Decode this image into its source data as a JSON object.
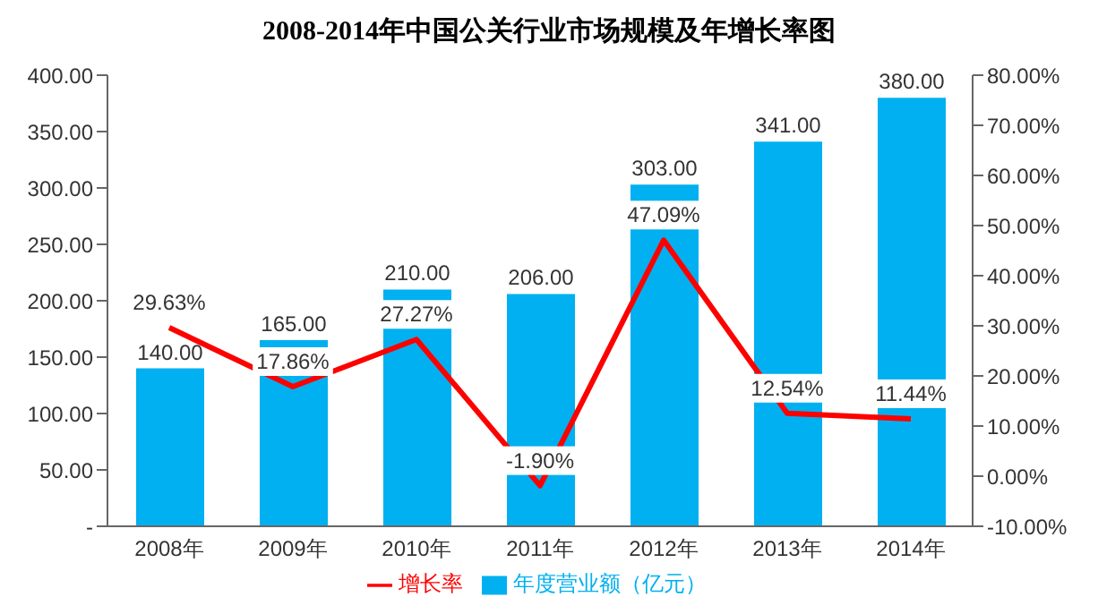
{
  "chart_data": {
    "type": "bar",
    "title": "2008-2014年中国公关行业市场规模及年增长率图",
    "categories": [
      "2008年",
      "2009年",
      "2010年",
      "2011年",
      "2012年",
      "2013年",
      "2014年"
    ],
    "series": [
      {
        "name": "年度营业额（亿元）",
        "color": "#00b0f0",
        "values": [
          140,
          165,
          210,
          206,
          303,
          341,
          380
        ],
        "value_labels": [
          "140.00",
          "165.00",
          "210.00",
          "206.00",
          "303.00",
          "341.00",
          "380.00"
        ]
      },
      {
        "name": "增长率",
        "type": "line",
        "axis": "y2",
        "color": "#ff0000",
        "values": [
          29.63,
          17.86,
          27.27,
          -1.9,
          47.09,
          12.54,
          11.44
        ],
        "value_labels": [
          "29.63%",
          "17.86%",
          "27.27%",
          "-1.90%",
          "47.09%",
          "12.54%",
          "11.44%"
        ]
      }
    ],
    "ylim": [
      0,
      400
    ],
    "yticks": [
      {
        "value": 0,
        "label": "-"
      },
      {
        "value": 50,
        "label": "50.00"
      },
      {
        "value": 100,
        "label": "100.00"
      },
      {
        "value": 150,
        "label": "150.00"
      },
      {
        "value": 200,
        "label": "200.00"
      },
      {
        "value": 250,
        "label": "250.00"
      },
      {
        "value": 300,
        "label": "300.00"
      },
      {
        "value": 350,
        "label": "350.00"
      },
      {
        "value": 400,
        "label": "400.00"
      }
    ],
    "y2lim": [
      -10,
      80
    ],
    "y2ticks": [
      {
        "value": -10,
        "label": "-10.00%"
      },
      {
        "value": 0,
        "label": "0.00%"
      },
      {
        "value": 10,
        "label": "10.00%"
      },
      {
        "value": 20,
        "label": "20.00%"
      },
      {
        "value": 30,
        "label": "30.00%"
      },
      {
        "value": 40,
        "label": "40.00%"
      },
      {
        "value": 50,
        "label": "50.00%"
      },
      {
        "value": 60,
        "label": "60.00%"
      },
      {
        "value": 70,
        "label": "70.00%"
      },
      {
        "value": 80,
        "label": "80.00%"
      }
    ],
    "grid": false,
    "legend": "bottom",
    "marker": "none",
    "line_style": "solid"
  }
}
